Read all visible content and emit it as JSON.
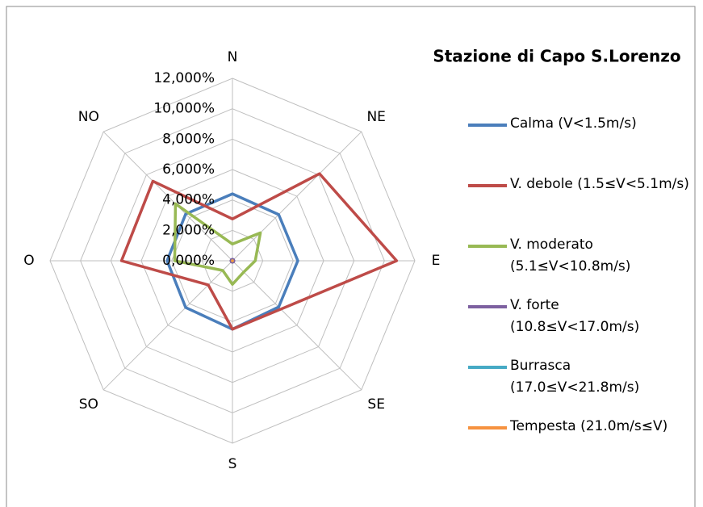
{
  "chart_data": {
    "type": "radar",
    "title": "Stazione di Capo S.Lorenzo",
    "categories": [
      "N",
      "NE",
      "E",
      "SE",
      "S",
      "SO",
      "O",
      "NO"
    ],
    "ylim": [
      0,
      12
    ],
    "yticks": [
      {
        "value": 0,
        "label": "0,000%"
      },
      {
        "value": 2,
        "label": "2,000%"
      },
      {
        "value": 4,
        "label": "4,000%"
      },
      {
        "value": 6,
        "label": "6,000%"
      },
      {
        "value": 8,
        "label": "8,000%"
      },
      {
        "value": 10,
        "label": "10,000%"
      },
      {
        "value": 12,
        "label": "12,000%"
      }
    ],
    "grid": true,
    "series": [
      {
        "name": "Calma (V<1.5m/s)",
        "color": "#4a7ebb",
        "values": [
          4.4,
          4.3,
          4.3,
          4.3,
          4.5,
          4.35,
          4.3,
          4.35
        ]
      },
      {
        "name": "V. debole (1.5≤V<5.1m/s)",
        "color": "#be4b48",
        "values": [
          2.75,
          8.1,
          10.8,
          4.5,
          4.5,
          2.25,
          7.3,
          7.4
        ]
      },
      {
        "name": "V. moderato (5.1≤V<10.8m/s)",
        "color": "#98b954",
        "values": [
          1.1,
          2.6,
          1.5,
          1.05,
          1.55,
          0.9,
          3.8,
          5.3
        ]
      },
      {
        "name": "V. forte (10.8≤V<17.0m/s)",
        "color": "#7d60a0",
        "values": [
          0.1,
          0.1,
          0.1,
          0.1,
          0.1,
          0.1,
          0.1,
          0.1
        ]
      },
      {
        "name": "Burrasca (17.0≤V<21.8m/s)",
        "color": "#46aac5",
        "values": [
          0.02,
          0.02,
          0.02,
          0.02,
          0.02,
          0.02,
          0.02,
          0.02
        ]
      },
      {
        "name": "Tempesta (21.0m/s≤V)",
        "color": "#f69240",
        "values": [
          0.01,
          0.01,
          0.01,
          0.01,
          0.01,
          0.01,
          0.01,
          0.01
        ]
      }
    ]
  }
}
